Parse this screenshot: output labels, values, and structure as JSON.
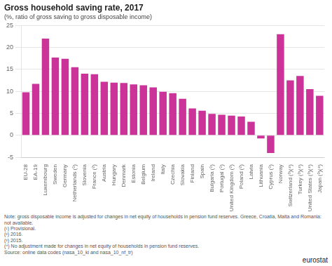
{
  "chart_data": {
    "type": "bar",
    "title": "Gross household saving rate, 2017",
    "subtitle": "(%, ratio of gross saving to gross disposable income)",
    "categories": [
      "EU-28",
      "EA-19",
      "Luxembourg",
      "Sweden",
      "Germany",
      "Netherlands (¹)",
      "Slovenia",
      "France (²)",
      "Austria",
      "Hungary",
      "Denmark",
      "Estonia",
      "Belgium",
      "Ireland",
      "Italy",
      "Czechia",
      "Slovakia",
      "Finland",
      "Spain",
      "Bulgaria (¹)",
      "Portugal (¹)",
      "United Kingdom (²)",
      "Poland (²)",
      "Latvia",
      "Lithuania",
      "Cyprus (¹)",
      "Norway",
      "Switzerland (³)(⁴)",
      "Turkey (³)(⁴)",
      "United States (³)(⁴)",
      "Japan (³)(⁴)"
    ],
    "values": [
      9.8,
      11.7,
      22.0,
      17.7,
      17.4,
      15.5,
      14.0,
      13.9,
      12.2,
      12.0,
      11.9,
      11.6,
      11.4,
      10.9,
      9.9,
      9.6,
      8.3,
      6.1,
      5.6,
      4.9,
      4.7,
      4.5,
      4.3,
      3.1,
      -0.7,
      -4.0,
      23.0,
      12.5,
      13.5,
      10.5,
      9.0
    ],
    "color": "#cc3399",
    "ylim": [
      -5,
      25
    ],
    "yticks": [
      -5,
      0,
      5,
      10,
      15,
      20,
      25
    ],
    "grid": true,
    "annotations": [
      "Note: gross disposable income is adjusted for changes in net equity of households in pension fund reserves. Greece, Croatia, Malta and Romania: not available.",
      "(¹) Provisional.",
      "(²) 2016.",
      "(³) 2015.",
      "(⁴) No adjustment made for changes in net equity of households in pension fund reserves.",
      "Source: online data codes (nasa_10_ki and nasa_10_nf_tr)",
      "eurostat"
    ]
  }
}
